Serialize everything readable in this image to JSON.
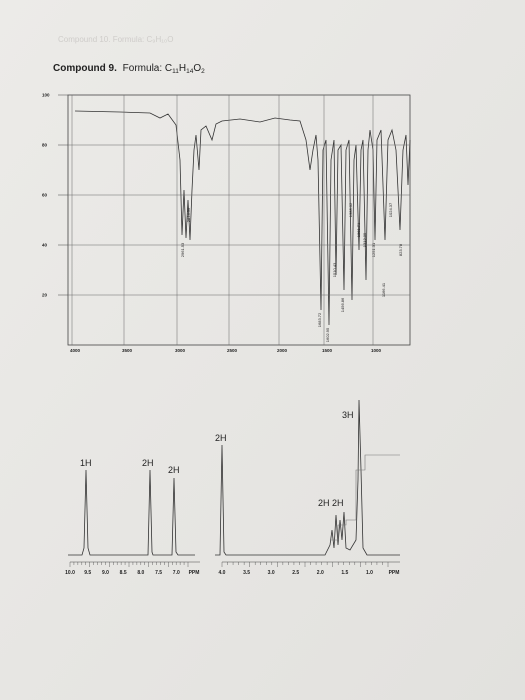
{
  "header": {
    "faded": "Compound 10. Formula: C₉H₁₀O",
    "label": "Compound 9.",
    "formula": [
      "Formula: C",
      "11",
      "H",
      "14",
      "O",
      "2"
    ]
  },
  "ir": {
    "y_ticks": [
      "100",
      "80",
      "60",
      "40",
      "20"
    ],
    "x_ticks": [
      "4000",
      "3500",
      "3000",
      "2500",
      "2000",
      "1500",
      "1000"
    ],
    "peaks": [
      "2961.53",
      "2874.35",
      "1683.72",
      "1602.95",
      "1510.43",
      "1456.86",
      "1388.02",
      "1361.71",
      "1313.09",
      "1251.31",
      "1166.41",
      "1024.37",
      "823.78"
    ]
  },
  "nmr": {
    "integrations": [
      "1H",
      "2H",
      "2H",
      "2H",
      "3H",
      "2H 2H"
    ],
    "axis_left": [
      "10.0",
      "9.5",
      "9.0",
      "8.5",
      "8.0",
      "7.5",
      "7.0",
      "PPM"
    ],
    "axis_right": [
      "4.0",
      "3.5",
      "3.0",
      "2.5",
      "2.0",
      "1.5",
      "1.0",
      "PPM"
    ]
  }
}
